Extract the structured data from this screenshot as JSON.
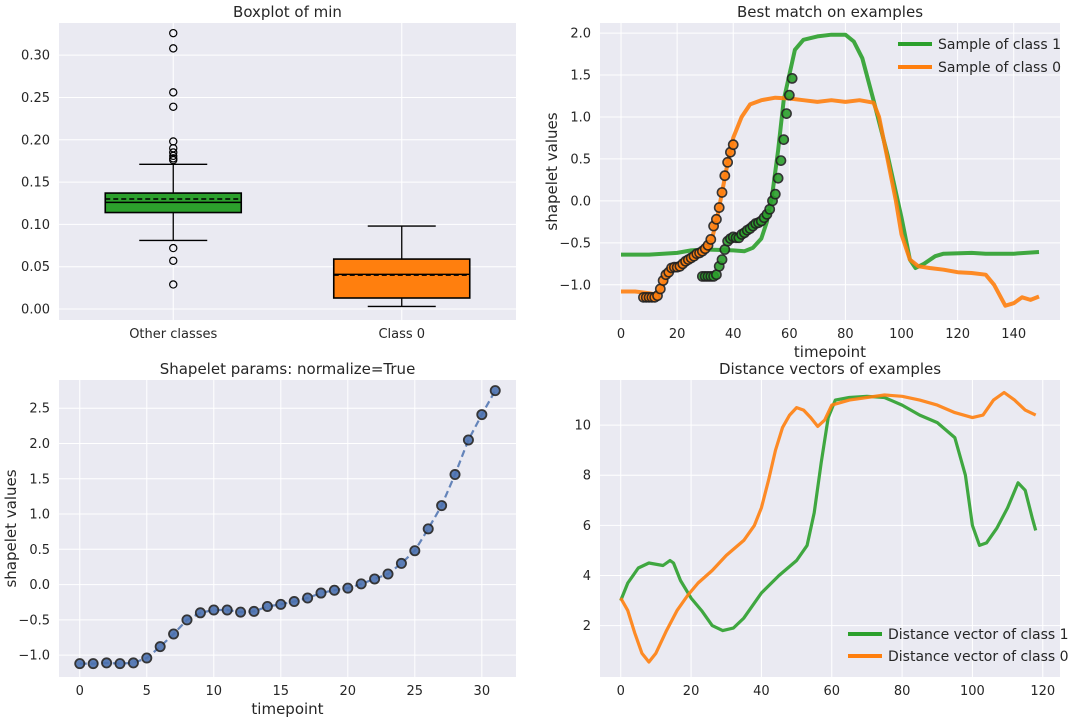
{
  "figure": {
    "colors": {
      "background": "#EAEAF2",
      "grid": "#ffffff",
      "text": "#262626",
      "green": "#2ca02c",
      "orange": "#ff7f0e",
      "blue": "#4c72b0"
    }
  },
  "chart_data": [
    {
      "type": "box",
      "title": "Boxplot of min",
      "xlabel": "",
      "ylabel": "",
      "ylim": [
        -0.013,
        0.338
      ],
      "grid": true,
      "yticks": [
        "0.00",
        "0.05",
        "0.10",
        "0.15",
        "0.20",
        "0.25",
        "0.30"
      ],
      "categories": [
        "Other classes",
        "Class 0"
      ],
      "boxes": [
        {
          "category": "Other classes",
          "color": "#2ca02c",
          "whisker_low": 0.081,
          "q1": 0.114,
          "median": 0.126,
          "mean": 0.13,
          "q3": 0.137,
          "whisker_high": 0.171,
          "outliers": [
            0.029,
            0.057,
            0.072,
            0.176,
            0.178,
            0.181,
            0.185,
            0.19,
            0.198,
            0.239,
            0.256,
            0.308,
            0.326
          ]
        },
        {
          "category": "Class 0",
          "color": "#ff7f0e",
          "whisker_low": 0.003,
          "q1": 0.013,
          "median": 0.041,
          "mean": 0.04,
          "q3": 0.059,
          "whisker_high": 0.098,
          "outliers": []
        }
      ]
    },
    {
      "type": "line",
      "title": "Best match on examples",
      "xlabel": "timepoint",
      "ylabel": "shapelet values",
      "xlim": [
        -7.5,
        156.5
      ],
      "ylim": [
        -1.42,
        2.12
      ],
      "grid": true,
      "xticks": [
        "0",
        "20",
        "40",
        "60",
        "80",
        "100",
        "120",
        "140"
      ],
      "yticks": [
        "−1.0",
        "−0.5",
        "0.0",
        "0.5",
        "1.0",
        "1.5",
        "2.0"
      ],
      "legend": "top-right",
      "series": [
        {
          "name": "Sample of class 1",
          "color": "#2ca02c",
          "points": [
            [
              0,
              -0.64
            ],
            [
              10,
              -0.64
            ],
            [
              20,
              -0.62
            ],
            [
              25,
              -0.59
            ],
            [
              30,
              -0.58
            ],
            [
              40,
              -0.59
            ],
            [
              44,
              -0.6
            ],
            [
              47,
              -0.56
            ],
            [
              50,
              -0.45
            ],
            [
              52,
              -0.25
            ],
            [
              54,
              0.1
            ],
            [
              56,
              0.6
            ],
            [
              58,
              1.2
            ],
            [
              60,
              1.5
            ],
            [
              62,
              1.8
            ],
            [
              65,
              1.92
            ],
            [
              70,
              1.96
            ],
            [
              75,
              1.98
            ],
            [
              80,
              1.98
            ],
            [
              83,
              1.9
            ],
            [
              86,
              1.7
            ],
            [
              90,
              1.2
            ],
            [
              95,
              0.55
            ],
            [
              100,
              -0.2
            ],
            [
              103,
              -0.7
            ],
            [
              105,
              -0.8
            ],
            [
              108,
              -0.75
            ],
            [
              112,
              -0.66
            ],
            [
              115,
              -0.63
            ],
            [
              125,
              -0.62
            ],
            [
              130,
              -0.63
            ],
            [
              140,
              -0.63
            ],
            [
              149,
              -0.61
            ]
          ],
          "match": [
            [
              29,
              -0.9
            ],
            [
              30,
              -0.9
            ],
            [
              31,
              -0.9
            ],
            [
              32,
              -0.9
            ],
            [
              33,
              -0.9
            ],
            [
              34,
              -0.88
            ],
            [
              35,
              -0.78
            ],
            [
              36,
              -0.7
            ],
            [
              37,
              -0.58
            ],
            [
              38,
              -0.48
            ],
            [
              39,
              -0.45
            ],
            [
              40,
              -0.43
            ],
            [
              41,
              -0.44
            ],
            [
              42,
              -0.44
            ],
            [
              43,
              -0.4
            ],
            [
              44,
              -0.38
            ],
            [
              45,
              -0.35
            ],
            [
              46,
              -0.33
            ],
            [
              47,
              -0.3
            ],
            [
              48,
              -0.27
            ],
            [
              49,
              -0.26
            ],
            [
              50,
              -0.24
            ],
            [
              51,
              -0.2
            ],
            [
              52,
              -0.16
            ],
            [
              53,
              -0.1
            ],
            [
              54,
              0.0
            ],
            [
              55,
              0.08
            ],
            [
              56,
              0.27
            ],
            [
              57,
              0.48
            ],
            [
              58,
              0.73
            ],
            [
              59,
              1.04
            ],
            [
              60,
              1.26
            ],
            [
              61,
              1.46
            ]
          ]
        },
        {
          "name": "Sample of class 0",
          "color": "#ff7f0e",
          "points": [
            [
              0,
              -1.08
            ],
            [
              5,
              -1.08
            ],
            [
              10,
              -1.1
            ],
            [
              13,
              -1.12
            ],
            [
              15,
              -1.0
            ],
            [
              17,
              -0.85
            ],
            [
              20,
              -0.78
            ],
            [
              25,
              -0.72
            ],
            [
              28,
              -0.65
            ],
            [
              30,
              -0.6
            ],
            [
              32,
              -0.5
            ],
            [
              34,
              -0.25
            ],
            [
              36,
              0.1
            ],
            [
              38,
              0.45
            ],
            [
              40,
              0.75
            ],
            [
              43,
              1.0
            ],
            [
              46,
              1.15
            ],
            [
              50,
              1.2
            ],
            [
              55,
              1.23
            ],
            [
              60,
              1.22
            ],
            [
              65,
              1.2
            ],
            [
              70,
              1.18
            ],
            [
              75,
              1.2
            ],
            [
              80,
              1.18
            ],
            [
              85,
              1.2
            ],
            [
              90,
              1.17
            ],
            [
              92,
              1.0
            ],
            [
              95,
              0.5
            ],
            [
              98,
              0.0
            ],
            [
              100,
              -0.4
            ],
            [
              103,
              -0.7
            ],
            [
              106,
              -0.78
            ],
            [
              110,
              -0.8
            ],
            [
              115,
              -0.82
            ],
            [
              120,
              -0.85
            ],
            [
              125,
              -0.86
            ],
            [
              130,
              -0.88
            ],
            [
              133,
              -1.0
            ],
            [
              137,
              -1.25
            ],
            [
              140,
              -1.22
            ],
            [
              143,
              -1.15
            ],
            [
              146,
              -1.18
            ],
            [
              149,
              -1.14
            ]
          ],
          "match": [
            [
              8,
              -1.15
            ],
            [
              9,
              -1.15
            ],
            [
              10,
              -1.15
            ],
            [
              11,
              -1.15
            ],
            [
              12,
              -1.15
            ],
            [
              13,
              -1.13
            ],
            [
              14,
              -1.05
            ],
            [
              15,
              -0.95
            ],
            [
              16,
              -0.88
            ],
            [
              17,
              -0.85
            ],
            [
              18,
              -0.8
            ],
            [
              19,
              -0.79
            ],
            [
              20,
              -0.79
            ],
            [
              21,
              -0.78
            ],
            [
              22,
              -0.75
            ],
            [
              23,
              -0.72
            ],
            [
              24,
              -0.7
            ],
            [
              25,
              -0.68
            ],
            [
              26,
              -0.66
            ],
            [
              27,
              -0.63
            ],
            [
              28,
              -0.62
            ],
            [
              29,
              -0.6
            ],
            [
              30,
              -0.57
            ],
            [
              31,
              -0.53
            ],
            [
              32,
              -0.46
            ],
            [
              33,
              -0.3
            ],
            [
              34,
              -0.22
            ],
            [
              35,
              -0.08
            ],
            [
              36,
              0.1
            ],
            [
              37,
              0.3
            ],
            [
              38,
              0.46
            ],
            [
              39,
              0.58
            ],
            [
              40,
              0.67
            ]
          ]
        }
      ]
    },
    {
      "type": "line",
      "title": "Shapelet params: normalize=True",
      "xlabel": "timepoint",
      "ylabel": "shapelet values",
      "xlim": [
        -1.55,
        32.55
      ],
      "ylim": [
        -1.31,
        2.9
      ],
      "grid": true,
      "xticks": [
        "0",
        "5",
        "10",
        "15",
        "20",
        "25",
        "30"
      ],
      "yticks": [
        "−1.0",
        "−0.5",
        "0.0",
        "0.5",
        "1.0",
        "1.5",
        "2.0",
        "2.5"
      ],
      "series": [
        {
          "color": "#4c72b0",
          "line_style": "dashed",
          "markers": true,
          "x": [
            0,
            1,
            2,
            3,
            4,
            5,
            6,
            7,
            8,
            9,
            10,
            11,
            12,
            13,
            14,
            15,
            16,
            17,
            18,
            19,
            20,
            21,
            22,
            23,
            24,
            25,
            26,
            27,
            28,
            29,
            30,
            31
          ],
          "y": [
            -1.12,
            -1.12,
            -1.11,
            -1.12,
            -1.11,
            -1.04,
            -0.88,
            -0.7,
            -0.5,
            -0.4,
            -0.36,
            -0.36,
            -0.39,
            -0.38,
            -0.31,
            -0.28,
            -0.24,
            -0.19,
            -0.12,
            -0.08,
            -0.05,
            0.01,
            0.08,
            0.15,
            0.3,
            0.48,
            0.79,
            1.12,
            1.56,
            2.05,
            2.41,
            2.75
          ]
        }
      ]
    },
    {
      "type": "line",
      "title": "Distance vectors of examples",
      "xlabel": "",
      "ylabel": "",
      "xlim": [
        -5.9,
        124.9
      ],
      "ylim": [
        -0.05,
        11.8
      ],
      "grid": true,
      "xticks": [
        "0",
        "20",
        "40",
        "60",
        "80",
        "100",
        "120"
      ],
      "yticks": [
        "2",
        "4",
        "6",
        "8",
        "10"
      ],
      "legend": "bottom-right",
      "series": [
        {
          "name": "Distance vector of class 1",
          "color": "#2ca02c",
          "points": [
            [
              0,
              3.0
            ],
            [
              2,
              3.7
            ],
            [
              5,
              4.3
            ],
            [
              8,
              4.5
            ],
            [
              12,
              4.4
            ],
            [
              14,
              4.6
            ],
            [
              15,
              4.5
            ],
            [
              17,
              3.8
            ],
            [
              20,
              3.1
            ],
            [
              23,
              2.6
            ],
            [
              26,
              2.0
            ],
            [
              29,
              1.8
            ],
            [
              32,
              1.9
            ],
            [
              35,
              2.3
            ],
            [
              40,
              3.3
            ],
            [
              45,
              4.0
            ],
            [
              50,
              4.6
            ],
            [
              53,
              5.2
            ],
            [
              55,
              6.5
            ],
            [
              57,
              8.5
            ],
            [
              59,
              10.3
            ],
            [
              61,
              11.0
            ],
            [
              65,
              11.1
            ],
            [
              70,
              11.15
            ],
            [
              75,
              11.1
            ],
            [
              80,
              10.8
            ],
            [
              85,
              10.4
            ],
            [
              90,
              10.1
            ],
            [
              95,
              9.5
            ],
            [
              98,
              8.0
            ],
            [
              100,
              6.0
            ],
            [
              102,
              5.2
            ],
            [
              104,
              5.3
            ],
            [
              107,
              5.9
            ],
            [
              110,
              6.7
            ],
            [
              113,
              7.7
            ],
            [
              115,
              7.4
            ],
            [
              117,
              6.3
            ],
            [
              118,
              5.8
            ]
          ]
        },
        {
          "name": "Distance vector of class 0",
          "color": "#ff7f0e",
          "points": [
            [
              0,
              3.1
            ],
            [
              2,
              2.6
            ],
            [
              4,
              1.7
            ],
            [
              6,
              0.9
            ],
            [
              8,
              0.55
            ],
            [
              10,
              0.9
            ],
            [
              13,
              1.8
            ],
            [
              16,
              2.6
            ],
            [
              19,
              3.2
            ],
            [
              22,
              3.7
            ],
            [
              26,
              4.2
            ],
            [
              30,
              4.8
            ],
            [
              35,
              5.4
            ],
            [
              38,
              6.0
            ],
            [
              40,
              6.7
            ],
            [
              42,
              7.8
            ],
            [
              44,
              9.0
            ],
            [
              46,
              9.9
            ],
            [
              48,
              10.4
            ],
            [
              50,
              10.7
            ],
            [
              52,
              10.6
            ],
            [
              54,
              10.3
            ],
            [
              56,
              9.95
            ],
            [
              58,
              10.2
            ],
            [
              60,
              10.8
            ],
            [
              65,
              11.0
            ],
            [
              70,
              11.1
            ],
            [
              75,
              11.2
            ],
            [
              80,
              11.15
            ],
            [
              85,
              11.0
            ],
            [
              90,
              10.8
            ],
            [
              95,
              10.5
            ],
            [
              100,
              10.3
            ],
            [
              103,
              10.4
            ],
            [
              106,
              11.0
            ],
            [
              109,
              11.3
            ],
            [
              112,
              11.0
            ],
            [
              115,
              10.6
            ],
            [
              118,
              10.4
            ]
          ]
        }
      ]
    }
  ]
}
